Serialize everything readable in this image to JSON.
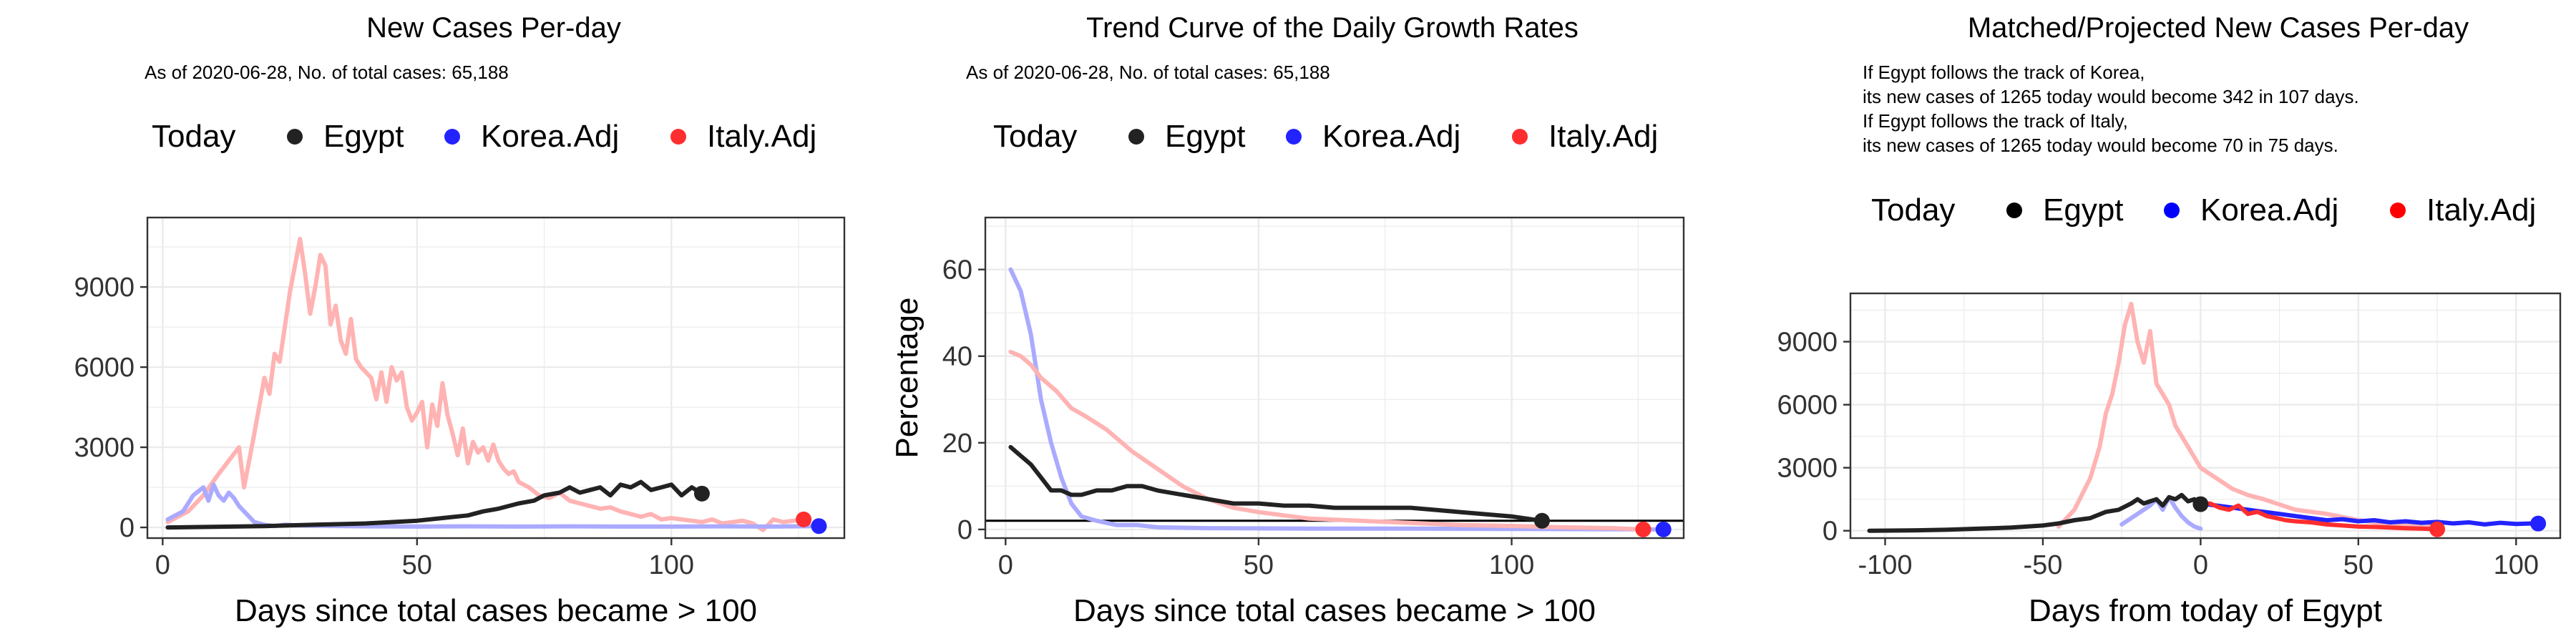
{
  "colors": {
    "egypt": "#222222",
    "korea": "#2323ff",
    "italy": "#ff2e2e",
    "korea_line": "#aaaaff",
    "italy_line": "#ffb3b3",
    "grid": "#ebebeb"
  },
  "chart_data": [
    {
      "type": "line",
      "title": "New Cases Per-day",
      "subtitle": [
        "As of 2020-06-28, No. of total cases: 65,188"
      ],
      "legend": {
        "title": "Today",
        "entries": [
          {
            "name": "Egypt",
            "color": "#222222"
          },
          {
            "name": "Korea.Adj",
            "color": "#2323ff"
          },
          {
            "name": "Italy.Adj",
            "color": "#ff2e2e"
          }
        ],
        "placement": "top"
      },
      "xlabel": "Days since total cases became > 100",
      "ylabel": "",
      "xlim": [
        -3,
        134
      ],
      "ylim": [
        -400,
        11600
      ],
      "xticks": [
        0,
        50,
        100
      ],
      "yticks": [
        0,
        3000,
        6000,
        9000
      ],
      "grid": true,
      "series": [
        {
          "name": "Italy.Adj",
          "line_color": "#ffb3b3",
          "today_point": [
            126,
            300
          ],
          "x": [
            1,
            5,
            8,
            11,
            13,
            15,
            16,
            18,
            20,
            21,
            22,
            23,
            24,
            25,
            26,
            27,
            28,
            29,
            30,
            31,
            32,
            33,
            34,
            35,
            36,
            37,
            38,
            39,
            40,
            41,
            42,
            43,
            44,
            45,
            46,
            47,
            48,
            49,
            50,
            51,
            52,
            53,
            54,
            55,
            56,
            57,
            58,
            59,
            60,
            61,
            62,
            63,
            64,
            65,
            66,
            67,
            68,
            69,
            70,
            72,
            74,
            76,
            78,
            80,
            82,
            84,
            86,
            88,
            90,
            92,
            94,
            96,
            98,
            100,
            102,
            104,
            106,
            108,
            110,
            112,
            114,
            116,
            118,
            120,
            122,
            124,
            126
          ],
          "y": [
            200,
            600,
            1200,
            2000,
            2500,
            3000,
            1500,
            3500,
            5600,
            5000,
            6500,
            6200,
            7500,
            8800,
            9800,
            10800,
            9500,
            8000,
            9000,
            10200,
            9800,
            7600,
            8300,
            7000,
            6500,
            7800,
            6300,
            6000,
            5800,
            5600,
            4800,
            5800,
            4700,
            6000,
            5500,
            5800,
            4500,
            4000,
            4300,
            4700,
            3000,
            4600,
            3800,
            5400,
            4200,
            3500,
            2700,
            3700,
            2400,
            3200,
            2800,
            3000,
            2500,
            3100,
            2500,
            2200,
            2000,
            2100,
            1700,
            1500,
            1200,
            1100,
            1300,
            1000,
            900,
            800,
            700,
            750,
            600,
            500,
            400,
            500,
            300,
            350,
            300,
            250,
            200,
            300,
            150,
            200,
            250,
            150,
            -100,
            300,
            200,
            250,
            300
          ]
        },
        {
          "name": "Korea.Adj",
          "line_color": "#aaaaff",
          "today_point": [
            129,
            50
          ],
          "x": [
            1,
            4,
            6,
            8,
            9,
            10,
            11,
            12,
            13,
            14,
            15,
            16,
            17,
            18,
            20,
            22,
            24,
            26,
            30,
            40,
            50,
            60,
            70,
            80,
            90,
            100,
            110,
            120,
            129
          ],
          "y": [
            300,
            600,
            1200,
            1500,
            1000,
            1600,
            1200,
            1000,
            1300,
            1100,
            800,
            600,
            400,
            200,
            100,
            50,
            100,
            80,
            60,
            40,
            30,
            40,
            30,
            40,
            30,
            30,
            40,
            30,
            50
          ]
        },
        {
          "name": "Egypt",
          "line_color": "#222222",
          "today_point": [
            106,
            1265
          ],
          "x": [
            1,
            10,
            20,
            30,
            40,
            45,
            50,
            55,
            60,
            63,
            66,
            70,
            73,
            75,
            78,
            80,
            82,
            84,
            86,
            88,
            90,
            92,
            94,
            96,
            98,
            100,
            102,
            104,
            106
          ],
          "y": [
            0,
            20,
            50,
            100,
            150,
            200,
            250,
            350,
            450,
            600,
            700,
            900,
            1000,
            1200,
            1300,
            1500,
            1300,
            1400,
            1500,
            1200,
            1600,
            1500,
            1700,
            1400,
            1500,
            1600,
            1200,
            1500,
            1265
          ]
        }
      ]
    },
    {
      "type": "line",
      "title": "Trend Curve of the Daily Growth Rates",
      "subtitle": [
        "As of 2020-06-28, No. of total cases: 65,188"
      ],
      "legend": {
        "title": "Today",
        "entries": [
          {
            "name": "Egypt",
            "color": "#222222"
          },
          {
            "name": "Korea.Adj",
            "color": "#2323ff"
          },
          {
            "name": "Italy.Adj",
            "color": "#ff2e2e"
          }
        ],
        "placement": "top"
      },
      "xlabel": "Days since total cases became > 100",
      "ylabel": "Percentage",
      "xlim": [
        -4,
        134
      ],
      "ylim": [
        -2,
        72
      ],
      "xticks": [
        0,
        50,
        100
      ],
      "yticks": [
        0,
        20,
        40,
        60
      ],
      "grid": true,
      "hline": 2,
      "series": [
        {
          "name": "Korea.Adj",
          "line_color": "#aaaaff",
          "today_point": [
            130,
            0
          ],
          "x": [
            1,
            3,
            5,
            7,
            9,
            11,
            13,
            15,
            18,
            22,
            26,
            30,
            40,
            60,
            80,
            100,
            130
          ],
          "y": [
            60,
            55,
            45,
            30,
            20,
            12,
            6,
            3,
            2,
            1,
            1,
            0.5,
            0.3,
            0.2,
            0.2,
            0.1,
            0
          ]
        },
        {
          "name": "Italy.Adj",
          "line_color": "#ffb3b3",
          "today_point": [
            126,
            0
          ],
          "x": [
            1,
            3,
            5,
            7,
            10,
            13,
            16,
            20,
            25,
            30,
            35,
            40,
            45,
            50,
            60,
            70,
            80,
            90,
            100,
            110,
            120,
            126
          ],
          "y": [
            41,
            40,
            38,
            35,
            32,
            28,
            26,
            23,
            18,
            14,
            10,
            7,
            5,
            4,
            2.5,
            2,
            1.5,
            1,
            0.8,
            0.5,
            0.3,
            0
          ]
        },
        {
          "name": "Egypt",
          "line_color": "#222222",
          "today_point": [
            106,
            2
          ],
          "x": [
            1,
            3,
            5,
            7,
            9,
            11,
            13,
            15,
            18,
            21,
            24,
            27,
            30,
            35,
            40,
            45,
            50,
            55,
            60,
            65,
            70,
            75,
            80,
            85,
            90,
            95,
            100,
            106
          ],
          "y": [
            19,
            17,
            15,
            12,
            9,
            9,
            8,
            8,
            9,
            9,
            10,
            10,
            9,
            8,
            7,
            6,
            6,
            5.5,
            5.5,
            5,
            5,
            5,
            5,
            4.5,
            4,
            3.5,
            3,
            2
          ]
        }
      ]
    },
    {
      "type": "line",
      "title": "Matched/Projected New Cases Per-day",
      "subtitle": [
        "If Egypt follows the track of Korea,",
        "its new cases of 1265 today would become 342 in 107 days.",
        "If Egypt follows the track of Italy,",
        "its new cases of 1265 today would become 70 in 75 days."
      ],
      "legend": {
        "title": "Today",
        "entries": [
          {
            "name": "Egypt",
            "color": "#000000"
          },
          {
            "name": "Korea.Adj",
            "color": "#0000ff"
          },
          {
            "name": "Italy.Adj",
            "color": "#ff0000"
          }
        ],
        "placement": "top"
      },
      "xlabel": "Days from today of Egypt",
      "ylabel": "",
      "xlim": [
        -111,
        114
      ],
      "ylim": [
        -350,
        11300
      ],
      "xticks": [
        -100,
        -50,
        0,
        50,
        100
      ],
      "yticks": [
        0,
        3000,
        6000,
        9000
      ],
      "grid": true,
      "series": [
        {
          "name": "Italy.Adj (matched)",
          "line_color": "#ffb3b3",
          "x": [
            -45,
            -40,
            -35,
            -32,
            -30,
            -28,
            -26,
            -24,
            -22,
            -20,
            -18,
            -16,
            -14,
            -12,
            -10,
            -8,
            -6,
            -4,
            -2,
            0,
            5,
            10,
            15,
            20,
            30,
            40,
            50,
            60,
            75
          ],
          "y": [
            200,
            1000,
            2500,
            4000,
            5600,
            6500,
            8000,
            9800,
            10800,
            9000,
            8000,
            9500,
            7000,
            6500,
            6000,
            5000,
            4500,
            4000,
            3500,
            3000,
            2500,
            2000,
            1700,
            1500,
            1000,
            800,
            500,
            300,
            200
          ]
        },
        {
          "name": "Korea.Adj (matched)",
          "line_color": "#aaaaff",
          "x": [
            -25,
            -20,
            -16,
            -14,
            -12,
            -10,
            -8,
            -6,
            -4,
            -2,
            0
          ],
          "y": [
            300,
            800,
            1200,
            1500,
            1000,
            1600,
            1100,
            700,
            400,
            200,
            100
          ]
        },
        {
          "name": "Egypt",
          "line_color": "#222222",
          "today_point": [
            0,
            1265
          ],
          "x": [
            -105,
            -90,
            -80,
            -70,
            -60,
            -50,
            -45,
            -40,
            -35,
            -30,
            -26,
            -22,
            -20,
            -18,
            -16,
            -14,
            -12,
            -10,
            -8,
            -6,
            -4,
            -2,
            0
          ],
          "y": [
            0,
            20,
            50,
            100,
            150,
            250,
            350,
            500,
            600,
            900,
            1000,
            1300,
            1500,
            1300,
            1400,
            1500,
            1200,
            1600,
            1500,
            1700,
            1400,
            1500,
            1265
          ]
        },
        {
          "name": "Korea.Adj (projected)",
          "line_color": "#2323ff",
          "today_point": [
            107,
            342
          ],
          "x": [
            0,
            5,
            10,
            15,
            20,
            25,
            30,
            35,
            40,
            45,
            50,
            55,
            60,
            65,
            70,
            75,
            80,
            85,
            90,
            95,
            100,
            105,
            107
          ],
          "y": [
            1300,
            1200,
            1100,
            1000,
            900,
            800,
            700,
            600,
            500,
            550,
            450,
            500,
            400,
            450,
            380,
            420,
            350,
            400,
            300,
            380,
            320,
            350,
            342
          ]
        },
        {
          "name": "Italy.Adj (projected)",
          "line_color": "#ff2e2e",
          "today_point": [
            75,
            70
          ],
          "x": [
            0,
            3,
            6,
            9,
            12,
            15,
            18,
            21,
            24,
            27,
            30,
            35,
            40,
            45,
            50,
            55,
            60,
            65,
            70,
            75
          ],
          "y": [
            1265,
            1300,
            1100,
            1000,
            1200,
            800,
            900,
            700,
            600,
            500,
            450,
            400,
            300,
            250,
            200,
            180,
            150,
            120,
            100,
            70
          ]
        }
      ]
    }
  ]
}
